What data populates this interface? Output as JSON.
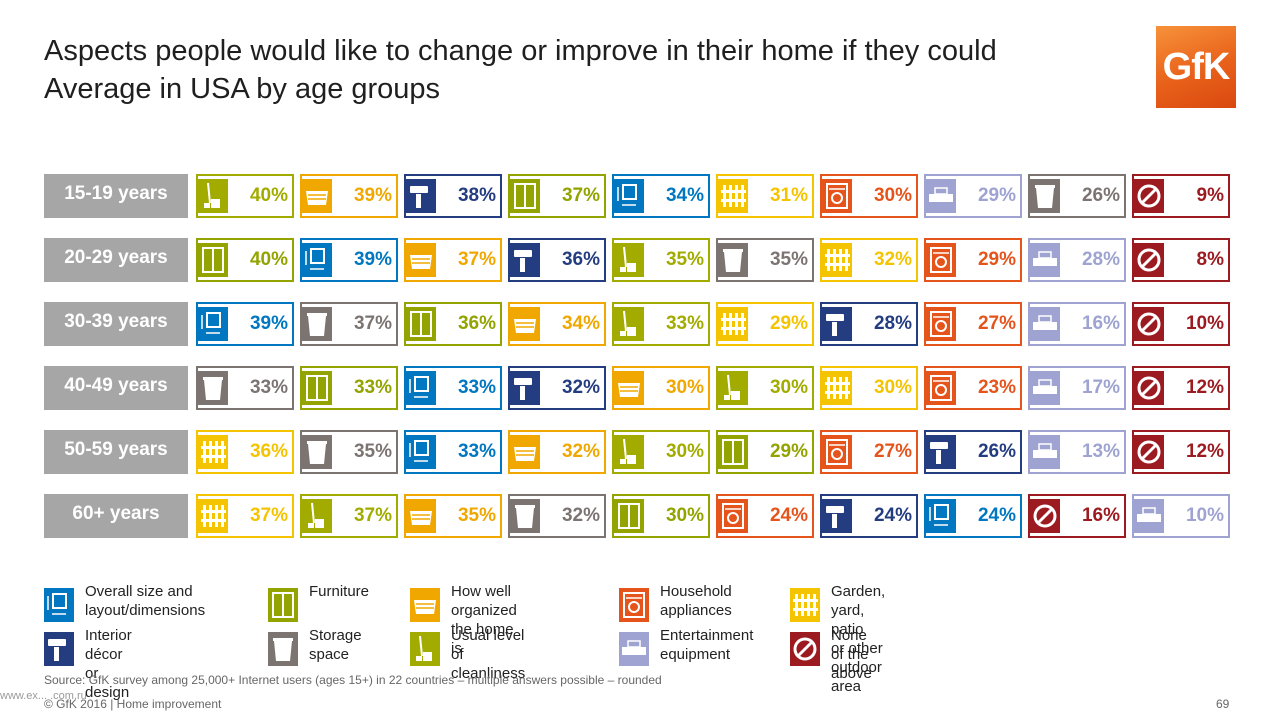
{
  "title_line1": "Aspects people would like to change or improve in their home if they could",
  "title_line2": "Average in USA by age groups",
  "logo_text": "GfK",
  "categories": {
    "size": {
      "label": "Overall size and\nlayout/dimensions",
      "color": "#0077c0",
      "icon": "layout-icon"
    },
    "interior": {
      "label": "Interior décor\nor design",
      "color": "#243d80",
      "icon": "paint-roller-icon"
    },
    "furniture": {
      "label": "Furniture",
      "color": "#93a300",
      "icon": "wardrobe-icon"
    },
    "storage": {
      "label": "Storage\nspace",
      "color": "#7c7471",
      "icon": "box-icon"
    },
    "organized": {
      "label": "How well organized\nthe home is",
      "color": "#f0a800",
      "icon": "drawer-icon"
    },
    "clean": {
      "label": "Usual level\nof cleanliness",
      "color": "#a2ac00",
      "icon": "mop-icon"
    },
    "appliances": {
      "label": "Household\nappliances",
      "color": "#e5541b",
      "icon": "washing-machine-icon"
    },
    "entertain": {
      "label": "Entertainment\nequipment",
      "color": "#9ea3d1",
      "icon": "tv-icon"
    },
    "garden": {
      "label": "Garden, yard, patio\nor other outdoor area",
      "color": "#f5c400",
      "icon": "fence-icon"
    },
    "none": {
      "label": "None of the\nabove",
      "color": "#9b1b20",
      "icon": "prohibited-icon"
    }
  },
  "legend_order": [
    "size",
    "interior",
    "furniture",
    "storage",
    "organized",
    "clean",
    "appliances",
    "entertain",
    "garden",
    "none"
  ],
  "chart_data": {
    "type": "table",
    "rows": [
      {
        "age": "15-19 years",
        "cells": [
          [
            "clean",
            "40%"
          ],
          [
            "organized",
            "39%"
          ],
          [
            "interior",
            "38%"
          ],
          [
            "furniture",
            "37%"
          ],
          [
            "size",
            "34%"
          ],
          [
            "garden",
            "31%"
          ],
          [
            "appliances",
            "30%"
          ],
          [
            "entertain",
            "29%"
          ],
          [
            "storage",
            "26%"
          ],
          [
            "none",
            "9%"
          ]
        ]
      },
      {
        "age": "20-29 years",
        "cells": [
          [
            "furniture",
            "40%"
          ],
          [
            "size",
            "39%"
          ],
          [
            "organized",
            "37%"
          ],
          [
            "interior",
            "36%"
          ],
          [
            "clean",
            "35%"
          ],
          [
            "storage",
            "35%"
          ],
          [
            "garden",
            "32%"
          ],
          [
            "appliances",
            "29%"
          ],
          [
            "entertain",
            "28%"
          ],
          [
            "none",
            "8%"
          ]
        ]
      },
      {
        "age": "30-39 years",
        "cells": [
          [
            "size",
            "39%"
          ],
          [
            "storage",
            "37%"
          ],
          [
            "furniture",
            "36%"
          ],
          [
            "organized",
            "34%"
          ],
          [
            "clean",
            "33%"
          ],
          [
            "garden",
            "29%"
          ],
          [
            "interior",
            "28%"
          ],
          [
            "appliances",
            "27%"
          ],
          [
            "entertain",
            "16%"
          ],
          [
            "none",
            "10%"
          ]
        ]
      },
      {
        "age": "40-49 years",
        "cells": [
          [
            "storage",
            "33%"
          ],
          [
            "furniture",
            "33%"
          ],
          [
            "size",
            "33%"
          ],
          [
            "interior",
            "32%"
          ],
          [
            "organized",
            "30%"
          ],
          [
            "clean",
            "30%"
          ],
          [
            "garden",
            "30%"
          ],
          [
            "appliances",
            "23%"
          ],
          [
            "entertain",
            "17%"
          ],
          [
            "none",
            "12%"
          ]
        ]
      },
      {
        "age": "50-59 years",
        "cells": [
          [
            "garden",
            "36%"
          ],
          [
            "storage",
            "35%"
          ],
          [
            "size",
            "33%"
          ],
          [
            "organized",
            "32%"
          ],
          [
            "clean",
            "30%"
          ],
          [
            "furniture",
            "29%"
          ],
          [
            "appliances",
            "27%"
          ],
          [
            "interior",
            "26%"
          ],
          [
            "entertain",
            "13%"
          ],
          [
            "none",
            "12%"
          ]
        ]
      },
      {
        "age": "60+ years",
        "cells": [
          [
            "garden",
            "37%"
          ],
          [
            "clean",
            "37%"
          ],
          [
            "organized",
            "35%"
          ],
          [
            "storage",
            "32%"
          ],
          [
            "furniture",
            "30%"
          ],
          [
            "appliances",
            "24%"
          ],
          [
            "interior",
            "24%"
          ],
          [
            "size",
            "24%"
          ],
          [
            "none",
            "16%"
          ],
          [
            "entertain",
            "10%"
          ]
        ]
      }
    ]
  },
  "source": "Source: GfK survey among 25,000+ Internet users (ages 15+) in 22 countries – multiple answers possible – rounded",
  "footer": "© GfK 2016 | Home improvement",
  "watermark": "www.ex... .com.ru",
  "page_number": "69"
}
